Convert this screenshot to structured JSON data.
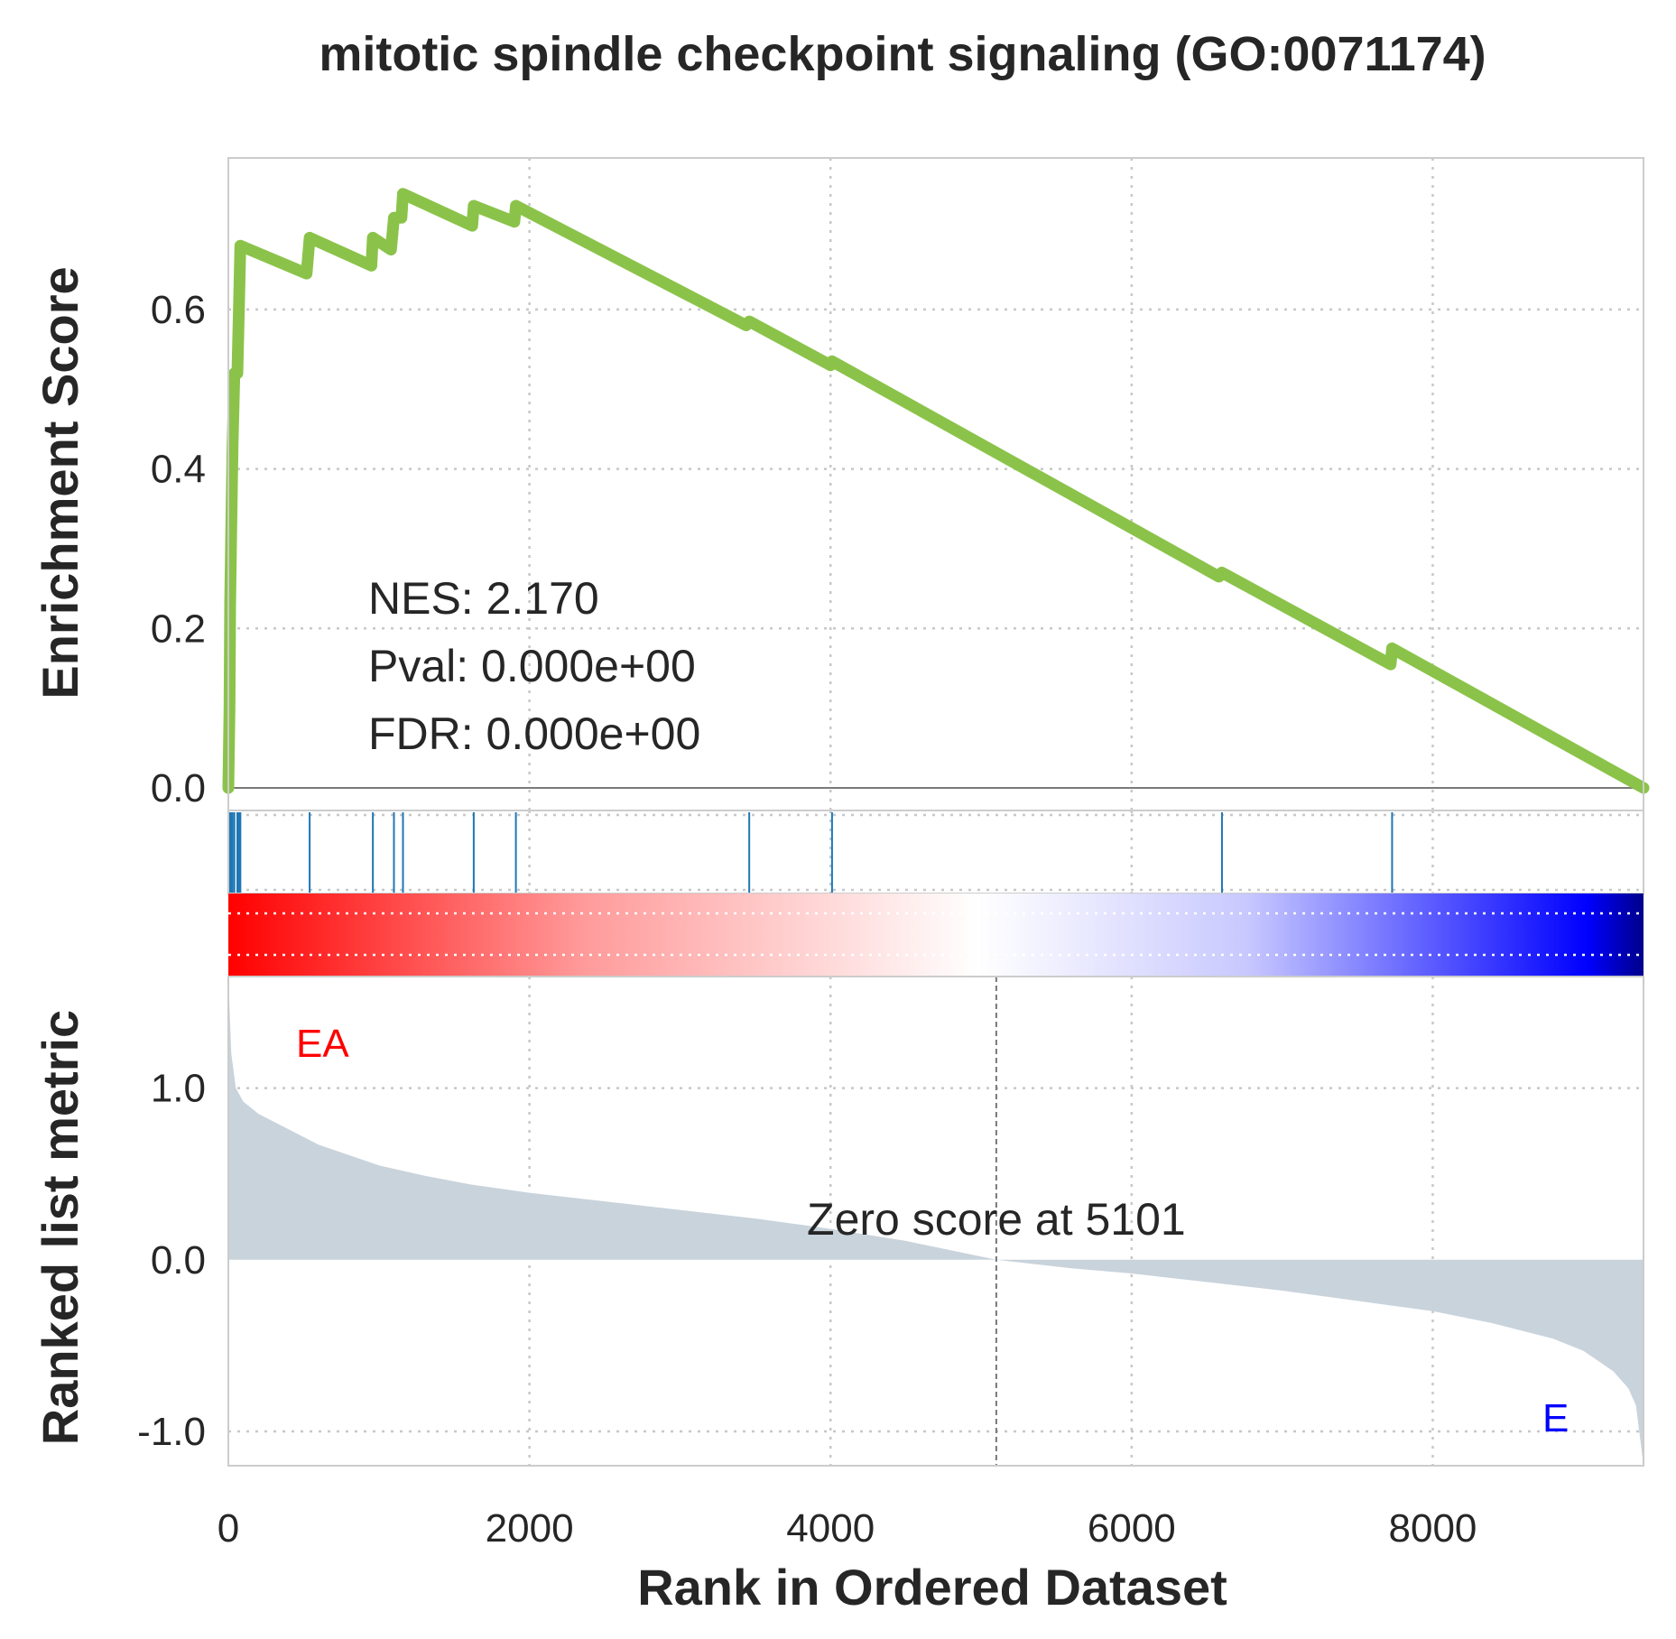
{
  "chart_data": {
    "type": "line",
    "title": "mitotic spindle checkpoint signaling (GO:0071174)",
    "xlabel": "Rank in Ordered Dataset",
    "ylabel_top": "Enrichment Score",
    "ylabel_bottom": "Ranked list metric",
    "xlim": [
      0,
      9400
    ],
    "x_ticks": [
      0,
      2000,
      4000,
      6000,
      8000
    ],
    "x_tick_labels": [
      "0",
      "2000",
      "4000",
      "6000",
      "8000"
    ],
    "grid": true,
    "es": {
      "ylim": [
        0,
        0.79
      ],
      "y_ticks": [
        0.0,
        0.2,
        0.4,
        0.6
      ],
      "y_tick_labels": [
        "0.0",
        "0.2",
        "0.4",
        "0.6"
      ],
      "color": "#8bc34a",
      "points": [
        [
          0,
          0
        ],
        [
          8,
          0.1
        ],
        [
          12,
          0.23
        ],
        [
          20,
          0.33
        ],
        [
          28,
          0.43
        ],
        [
          40,
          0.52
        ],
        [
          60,
          0.52
        ],
        [
          70,
          0.6
        ],
        [
          80,
          0.68
        ],
        [
          520,
          0.645
        ],
        [
          540,
          0.69
        ],
        [
          950,
          0.655
        ],
        [
          960,
          0.69
        ],
        [
          1080,
          0.675
        ],
        [
          1100,
          0.715
        ],
        [
          1150,
          0.715
        ],
        [
          1160,
          0.745
        ],
        [
          1620,
          0.705
        ],
        [
          1630,
          0.73
        ],
        [
          1900,
          0.71
        ],
        [
          1910,
          0.73
        ],
        [
          3440,
          0.58
        ],
        [
          3460,
          0.585
        ],
        [
          4000,
          0.53
        ],
        [
          4010,
          0.535
        ],
        [
          6580,
          0.265
        ],
        [
          6600,
          0.27
        ],
        [
          7720,
          0.155
        ],
        [
          7730,
          0.175
        ],
        [
          9400,
          0.0
        ]
      ]
    },
    "hits": [
      5,
      12,
      20,
      28,
      40,
      60,
      70,
      80,
      540,
      960,
      1100,
      1160,
      1630,
      1910,
      3460,
      4010,
      6600,
      7730
    ],
    "hit_color": "#1f77b4",
    "annotations": {
      "nes": "NES: 2.170",
      "pval": "Pval: 0.000e+00",
      "fdr": "FDR: 0.000e+00",
      "zero_score": "Zero score at 5101",
      "zero_rank": 5101,
      "label_pos": "EA",
      "label_neg": "E",
      "label_pos_color": "#ff0000",
      "label_neg_color": "#0000ff"
    },
    "ranked_metric": {
      "ylim": [
        -1.2,
        1.65
      ],
      "y_ticks": [
        1.0,
        0.0,
        -1.0
      ],
      "y_tick_labels": [
        "1.0",
        "0.0",
        "-1.0"
      ],
      "fill_color": "#c9d3dc",
      "points": [
        [
          0,
          1.65
        ],
        [
          20,
          1.2
        ],
        [
          50,
          1.0
        ],
        [
          100,
          0.92
        ],
        [
          200,
          0.85
        ],
        [
          400,
          0.76
        ],
        [
          600,
          0.67
        ],
        [
          800,
          0.61
        ],
        [
          1000,
          0.55
        ],
        [
          1300,
          0.49
        ],
        [
          1600,
          0.44
        ],
        [
          2000,
          0.39
        ],
        [
          2500,
          0.34
        ],
        [
          3000,
          0.29
        ],
        [
          3500,
          0.24
        ],
        [
          4000,
          0.18
        ],
        [
          4500,
          0.11
        ],
        [
          5101,
          0.0
        ],
        [
          5600,
          -0.05
        ],
        [
          6000,
          -0.08
        ],
        [
          6500,
          -0.13
        ],
        [
          7000,
          -0.18
        ],
        [
          7500,
          -0.24
        ],
        [
          8000,
          -0.3
        ],
        [
          8400,
          -0.37
        ],
        [
          8800,
          -0.46
        ],
        [
          9000,
          -0.53
        ],
        [
          9200,
          -0.65
        ],
        [
          9300,
          -0.75
        ],
        [
          9350,
          -0.85
        ],
        [
          9400,
          -1.2
        ]
      ]
    },
    "colorbar": {
      "stops": [
        "#ff0000",
        "#ff9a9a",
        "#ffffff",
        "#c8c8ff",
        "#0000ff",
        "#00008b"
      ]
    }
  }
}
